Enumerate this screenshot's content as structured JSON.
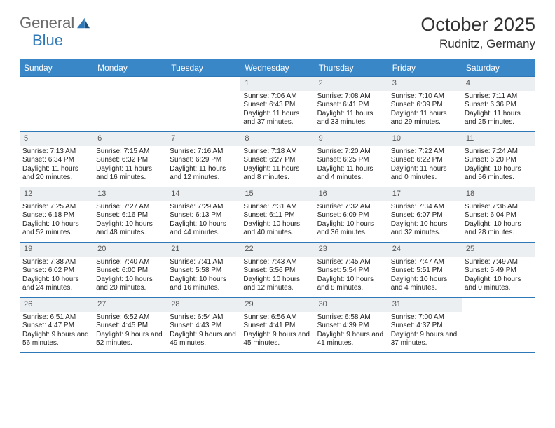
{
  "logo": {
    "part1": "General",
    "part2": "Blue"
  },
  "title": "October 2025",
  "location": "Rudnitz, Germany",
  "colors": {
    "header_bg": "#3a87c8",
    "header_text": "#ffffff",
    "line": "#2f78b7",
    "daynum_bg": "#eceff1",
    "daynum_text": "#555555",
    "text": "#222222",
    "logo_gray": "#6b6b6b",
    "logo_blue": "#2f78b7"
  },
  "daynames": [
    "Sunday",
    "Monday",
    "Tuesday",
    "Wednesday",
    "Thursday",
    "Friday",
    "Saturday"
  ],
  "weeks": [
    [
      {
        "n": "",
        "sr": "",
        "ss": "",
        "dl": ""
      },
      {
        "n": "",
        "sr": "",
        "ss": "",
        "dl": ""
      },
      {
        "n": "",
        "sr": "",
        "ss": "",
        "dl": ""
      },
      {
        "n": "1",
        "sr": "Sunrise: 7:06 AM",
        "ss": "Sunset: 6:43 PM",
        "dl": "Daylight: 11 hours and 37 minutes."
      },
      {
        "n": "2",
        "sr": "Sunrise: 7:08 AM",
        "ss": "Sunset: 6:41 PM",
        "dl": "Daylight: 11 hours and 33 minutes."
      },
      {
        "n": "3",
        "sr": "Sunrise: 7:10 AM",
        "ss": "Sunset: 6:39 PM",
        "dl": "Daylight: 11 hours and 29 minutes."
      },
      {
        "n": "4",
        "sr": "Sunrise: 7:11 AM",
        "ss": "Sunset: 6:36 PM",
        "dl": "Daylight: 11 hours and 25 minutes."
      }
    ],
    [
      {
        "n": "5",
        "sr": "Sunrise: 7:13 AM",
        "ss": "Sunset: 6:34 PM",
        "dl": "Daylight: 11 hours and 20 minutes."
      },
      {
        "n": "6",
        "sr": "Sunrise: 7:15 AM",
        "ss": "Sunset: 6:32 PM",
        "dl": "Daylight: 11 hours and 16 minutes."
      },
      {
        "n": "7",
        "sr": "Sunrise: 7:16 AM",
        "ss": "Sunset: 6:29 PM",
        "dl": "Daylight: 11 hours and 12 minutes."
      },
      {
        "n": "8",
        "sr": "Sunrise: 7:18 AM",
        "ss": "Sunset: 6:27 PM",
        "dl": "Daylight: 11 hours and 8 minutes."
      },
      {
        "n": "9",
        "sr": "Sunrise: 7:20 AM",
        "ss": "Sunset: 6:25 PM",
        "dl": "Daylight: 11 hours and 4 minutes."
      },
      {
        "n": "10",
        "sr": "Sunrise: 7:22 AM",
        "ss": "Sunset: 6:22 PM",
        "dl": "Daylight: 11 hours and 0 minutes."
      },
      {
        "n": "11",
        "sr": "Sunrise: 7:24 AM",
        "ss": "Sunset: 6:20 PM",
        "dl": "Daylight: 10 hours and 56 minutes."
      }
    ],
    [
      {
        "n": "12",
        "sr": "Sunrise: 7:25 AM",
        "ss": "Sunset: 6:18 PM",
        "dl": "Daylight: 10 hours and 52 minutes."
      },
      {
        "n": "13",
        "sr": "Sunrise: 7:27 AM",
        "ss": "Sunset: 6:16 PM",
        "dl": "Daylight: 10 hours and 48 minutes."
      },
      {
        "n": "14",
        "sr": "Sunrise: 7:29 AM",
        "ss": "Sunset: 6:13 PM",
        "dl": "Daylight: 10 hours and 44 minutes."
      },
      {
        "n": "15",
        "sr": "Sunrise: 7:31 AM",
        "ss": "Sunset: 6:11 PM",
        "dl": "Daylight: 10 hours and 40 minutes."
      },
      {
        "n": "16",
        "sr": "Sunrise: 7:32 AM",
        "ss": "Sunset: 6:09 PM",
        "dl": "Daylight: 10 hours and 36 minutes."
      },
      {
        "n": "17",
        "sr": "Sunrise: 7:34 AM",
        "ss": "Sunset: 6:07 PM",
        "dl": "Daylight: 10 hours and 32 minutes."
      },
      {
        "n": "18",
        "sr": "Sunrise: 7:36 AM",
        "ss": "Sunset: 6:04 PM",
        "dl": "Daylight: 10 hours and 28 minutes."
      }
    ],
    [
      {
        "n": "19",
        "sr": "Sunrise: 7:38 AM",
        "ss": "Sunset: 6:02 PM",
        "dl": "Daylight: 10 hours and 24 minutes."
      },
      {
        "n": "20",
        "sr": "Sunrise: 7:40 AM",
        "ss": "Sunset: 6:00 PM",
        "dl": "Daylight: 10 hours and 20 minutes."
      },
      {
        "n": "21",
        "sr": "Sunrise: 7:41 AM",
        "ss": "Sunset: 5:58 PM",
        "dl": "Daylight: 10 hours and 16 minutes."
      },
      {
        "n": "22",
        "sr": "Sunrise: 7:43 AM",
        "ss": "Sunset: 5:56 PM",
        "dl": "Daylight: 10 hours and 12 minutes."
      },
      {
        "n": "23",
        "sr": "Sunrise: 7:45 AM",
        "ss": "Sunset: 5:54 PM",
        "dl": "Daylight: 10 hours and 8 minutes."
      },
      {
        "n": "24",
        "sr": "Sunrise: 7:47 AM",
        "ss": "Sunset: 5:51 PM",
        "dl": "Daylight: 10 hours and 4 minutes."
      },
      {
        "n": "25",
        "sr": "Sunrise: 7:49 AM",
        "ss": "Sunset: 5:49 PM",
        "dl": "Daylight: 10 hours and 0 minutes."
      }
    ],
    [
      {
        "n": "26",
        "sr": "Sunrise: 6:51 AM",
        "ss": "Sunset: 4:47 PM",
        "dl": "Daylight: 9 hours and 56 minutes."
      },
      {
        "n": "27",
        "sr": "Sunrise: 6:52 AM",
        "ss": "Sunset: 4:45 PM",
        "dl": "Daylight: 9 hours and 52 minutes."
      },
      {
        "n": "28",
        "sr": "Sunrise: 6:54 AM",
        "ss": "Sunset: 4:43 PM",
        "dl": "Daylight: 9 hours and 49 minutes."
      },
      {
        "n": "29",
        "sr": "Sunrise: 6:56 AM",
        "ss": "Sunset: 4:41 PM",
        "dl": "Daylight: 9 hours and 45 minutes."
      },
      {
        "n": "30",
        "sr": "Sunrise: 6:58 AM",
        "ss": "Sunset: 4:39 PM",
        "dl": "Daylight: 9 hours and 41 minutes."
      },
      {
        "n": "31",
        "sr": "Sunrise: 7:00 AM",
        "ss": "Sunset: 4:37 PM",
        "dl": "Daylight: 9 hours and 37 minutes."
      },
      {
        "n": "",
        "sr": "",
        "ss": "",
        "dl": ""
      }
    ]
  ]
}
